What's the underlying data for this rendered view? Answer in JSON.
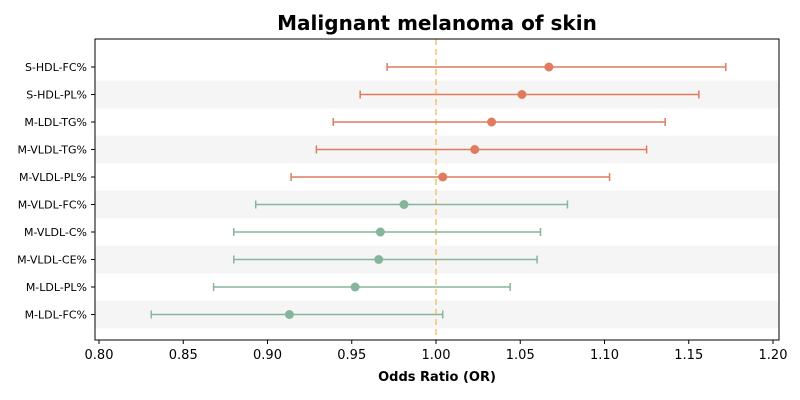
{
  "chart_data": {
    "type": "forest",
    "title": "Malignant melanoma of skin",
    "xlabel": "Odds Ratio (OR)",
    "ylabel": "",
    "xlim": [
      0.8,
      1.2
    ],
    "xticks": [
      "0.80",
      "0.85",
      "0.90",
      "0.95",
      "1.00",
      "1.05",
      "1.10",
      "1.15",
      "1.20"
    ],
    "reference_line": 1.0,
    "colors": {
      "positive": "#e07b5f",
      "negative": "#86b59c",
      "reference": "#f5c26b",
      "stripe": "#f5f5f5"
    },
    "rows": [
      {
        "label": "S-HDL-FC%",
        "or": 1.067,
        "lower": 0.971,
        "upper": 1.172
      },
      {
        "label": "S-HDL-PL%",
        "or": 1.051,
        "lower": 0.955,
        "upper": 1.156
      },
      {
        "label": "M-LDL-TG%",
        "or": 1.033,
        "lower": 0.939,
        "upper": 1.136
      },
      {
        "label": "M-VLDL-TG%",
        "or": 1.023,
        "lower": 0.929,
        "upper": 1.125
      },
      {
        "label": "M-VLDL-PL%",
        "or": 1.004,
        "lower": 0.914,
        "upper": 1.103
      },
      {
        "label": "M-VLDL-FC%",
        "or": 0.981,
        "lower": 0.893,
        "upper": 1.078
      },
      {
        "label": "M-VLDL-C%",
        "or": 0.967,
        "lower": 0.88,
        "upper": 1.062
      },
      {
        "label": "M-VLDL-CE%",
        "or": 0.966,
        "lower": 0.88,
        "upper": 1.06
      },
      {
        "label": "M-LDL-PL%",
        "or": 0.952,
        "lower": 0.868,
        "upper": 1.044
      },
      {
        "label": "M-LDL-FC%",
        "or": 0.913,
        "lower": 0.831,
        "upper": 1.004
      }
    ]
  }
}
